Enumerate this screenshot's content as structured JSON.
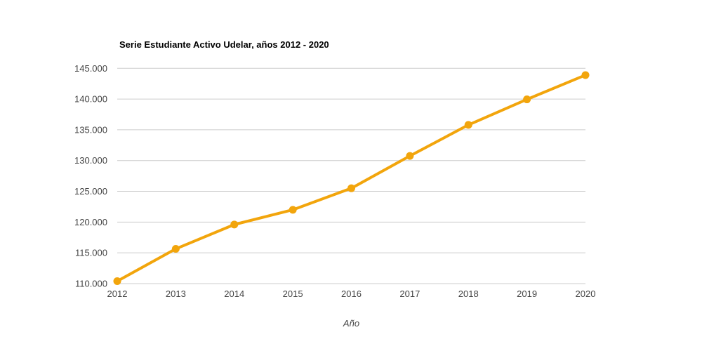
{
  "chart_data": {
    "type": "line",
    "title": "Serie Estudiante Activo Udelar, años 2012 - 2020",
    "xlabel": "Año",
    "ylabel": "",
    "categories": [
      "2012",
      "2013",
      "2014",
      "2015",
      "2016",
      "2017",
      "2018",
      "2019",
      "2020"
    ],
    "values": [
      110400,
      115650,
      119600,
      122000,
      125500,
      130750,
      135800,
      139950,
      143900
    ],
    "ylim": [
      110000,
      145000
    ],
    "ytick_step": 5000,
    "ytick_labels": [
      "110.000",
      "115.000",
      "120.000",
      "125.000",
      "130.000",
      "135.000",
      "140.000",
      "145.000"
    ],
    "grid": true,
    "legend_position": "none",
    "colors": {
      "line": "#F2A50C",
      "grid": "#CCCCCC",
      "axis_text": "#444444",
      "title_text": "#000000",
      "background": "#FFFFFF"
    }
  }
}
